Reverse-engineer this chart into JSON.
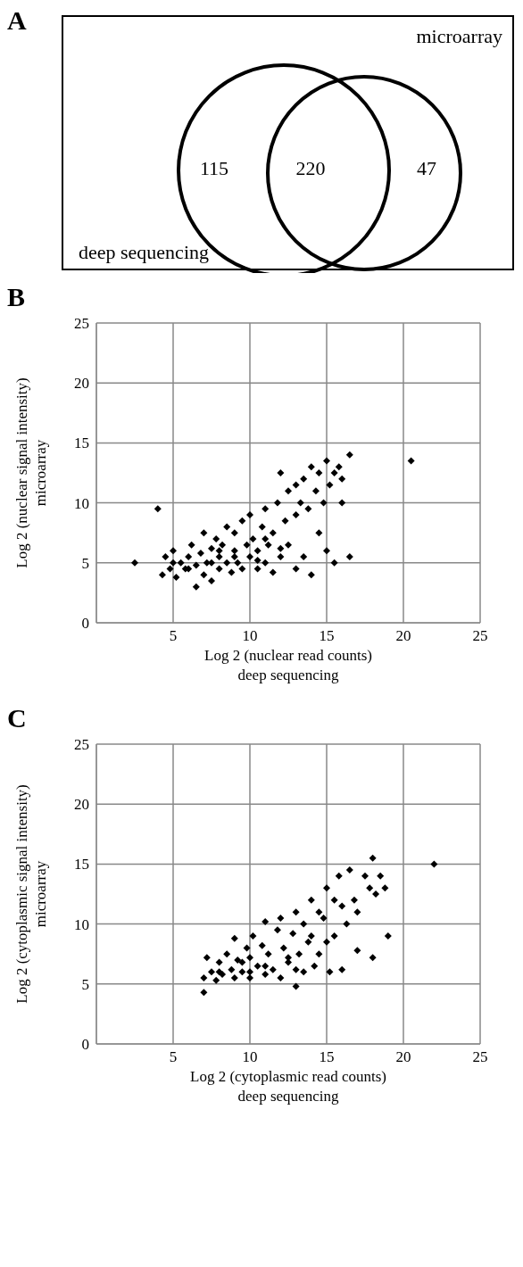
{
  "chart_data": [
    {
      "type": "other",
      "title": "A",
      "values": [
        115,
        220,
        47
      ],
      "data_labels": true,
      "annotations": [
        "microarray",
        "deep sequencing"
      ]
    },
    {
      "type": "scatter",
      "title": "B",
      "xlabel": "Log 2 (nuclear read counts)\ndeep sequencing",
      "ylabel": "Log 2 (nuclear signal intensity)\nmicroarray",
      "xlim": [
        0,
        25
      ],
      "ylim": [
        0,
        25
      ],
      "xticks": [
        {
          "value": 0,
          "label": null
        },
        5,
        10,
        15,
        20,
        25
      ],
      "yticks": [
        0,
        5,
        10,
        15,
        20,
        25
      ],
      "grid": true,
      "marker": "diamond",
      "series": [
        {
          "color": "#000000",
          "x": [
            2.5,
            4,
            4.3,
            4.5,
            4.8,
            5,
            5.2,
            5.5,
            5.8,
            6,
            6.2,
            6.5,
            6.5,
            6.8,
            7,
            7,
            7.2,
            7.5,
            7.5,
            7.8,
            8,
            8,
            8.2,
            8.5,
            8.5,
            8.8,
            9,
            9,
            9.2,
            9.5,
            9.5,
            9.8,
            10,
            10,
            10.2,
            10.5,
            10.5,
            10.8,
            11,
            11,
            11.2,
            11.5,
            11.5,
            11.8,
            12,
            12,
            12.3,
            12.5,
            12.5,
            13,
            13,
            13,
            13.3,
            13.5,
            13.8,
            14,
            14,
            14.3,
            14.5,
            14.5,
            14.8,
            15,
            15,
            15.2,
            15.5,
            15.5,
            15.8,
            16,
            16,
            16.5,
            16.5,
            20.5,
            11,
            9,
            8,
            6,
            10.5,
            12,
            13.5,
            7.5,
            5
          ],
          "values": [
            5,
            9.5,
            4,
            5.5,
            4.5,
            6,
            3.8,
            5,
            4.5,
            5.5,
            6.5,
            3,
            4.8,
            5.8,
            4,
            7.5,
            5,
            6.2,
            3.5,
            7,
            4.5,
            5.5,
            6.5,
            8,
            5,
            4.2,
            6,
            7.5,
            5,
            8.5,
            4.5,
            6.5,
            9,
            5.5,
            7,
            4.5,
            6,
            8,
            5,
            9.5,
            6.5,
            4.2,
            7.5,
            10,
            12.5,
            5.5,
            8.5,
            11,
            6.5,
            9,
            11.5,
            4.5,
            10,
            12,
            9.5,
            13,
            4,
            11,
            12.5,
            7.5,
            10,
            13.5,
            6,
            11.5,
            12.5,
            5,
            13,
            10,
            12,
            14,
            5.5,
            13.5,
            7,
            5.5,
            6,
            4.5,
            5.2,
            6.2,
            5.5,
            5,
            5
          ]
        }
      ]
    },
    {
      "type": "scatter",
      "title": "C",
      "xlabel": "Log 2 (cytoplasmic read counts)\ndeep sequencing",
      "ylabel": "Log 2 (cytoplasmic signal intensity)\nmicroarray",
      "xlim": [
        0,
        25
      ],
      "ylim": [
        0,
        25
      ],
      "xticks": [
        {
          "value": 0,
          "label": null
        },
        5,
        10,
        15,
        20,
        25
      ],
      "yticks": [
        0,
        5,
        10,
        15,
        20,
        25
      ],
      "grid": true,
      "marker": "diamond",
      "series": [
        {
          "color": "#000000",
          "x": [
            7,
            7,
            7.2,
            7.5,
            7.8,
            8,
            8.2,
            8.5,
            8.8,
            9,
            9,
            9.2,
            9.5,
            9.8,
            10,
            10,
            10.2,
            10.5,
            10.8,
            11,
            11,
            11.2,
            11.5,
            11.8,
            12,
            12,
            12.2,
            12.5,
            12.8,
            13,
            13,
            13.2,
            13.5,
            13.5,
            13.8,
            14,
            14,
            14.2,
            14.5,
            14.5,
            14.8,
            15,
            15,
            15.2,
            15.5,
            15.5,
            15.8,
            16,
            16,
            16.3,
            16.5,
            16.8,
            17,
            17,
            17.5,
            17.8,
            18,
            18,
            18.2,
            18.5,
            18.8,
            19,
            22,
            9.5,
            11,
            12.5,
            8,
            10,
            13
          ],
          "values": [
            4.3,
            5.5,
            7.2,
            6,
            5.3,
            6.8,
            5.8,
            7.5,
            6.2,
            5.5,
            8.8,
            7,
            6,
            8,
            5.5,
            7.2,
            9,
            6.5,
            8.2,
            5.8,
            10.2,
            7.5,
            6.2,
            9.5,
            5.5,
            10.5,
            8,
            6.8,
            9.2,
            4.8,
            11,
            7.5,
            10,
            6,
            8.5,
            12,
            9,
            6.5,
            11,
            7.5,
            10.5,
            13,
            8.5,
            6,
            12,
            9,
            14,
            11.5,
            6.2,
            10,
            14.5,
            12,
            7.8,
            11,
            14,
            13,
            15.5,
            7.2,
            12.5,
            14,
            13,
            9,
            15,
            6.8,
            6.5,
            7.2,
            6,
            6,
            6.2
          ]
        }
      ]
    }
  ]
}
